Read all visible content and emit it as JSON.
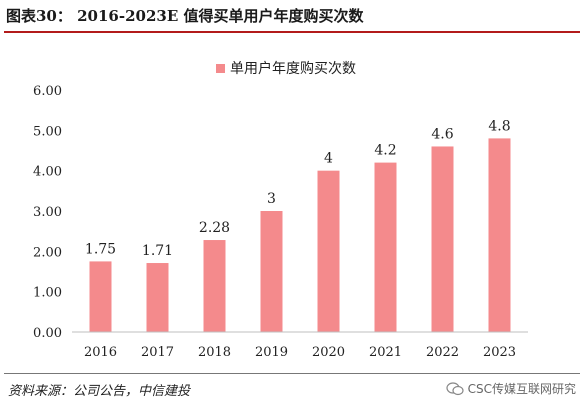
{
  "header": {
    "title": "图表30： 2016-2023E 值得买单用户年度购买次数"
  },
  "footer": {
    "source": "资料来源：公司公告，中信建投",
    "watermark": "CSC传媒互联网研究"
  },
  "colors": {
    "bar": "#F48A8C",
    "title_rule": "#B31B1B"
  },
  "chart_data": {
    "type": "bar",
    "categories": [
      "2016",
      "2017",
      "2018",
      "2019",
      "2020",
      "2021",
      "2022",
      "2023"
    ],
    "series": [
      {
        "name": "单用户年度购买次数",
        "values": [
          1.75,
          1.71,
          2.28,
          3,
          4,
          4.2,
          4.6,
          4.8
        ],
        "labels": [
          "1.75",
          "1.71",
          "2.28",
          "3",
          "4",
          "4.2",
          "4.6",
          "4.8"
        ]
      }
    ],
    "ylim": [
      0,
      6
    ],
    "yticks": [
      "0.00",
      "1.00",
      "2.00",
      "3.00",
      "4.00",
      "5.00",
      "6.00"
    ],
    "legend_position": "top",
    "grid": false
  }
}
